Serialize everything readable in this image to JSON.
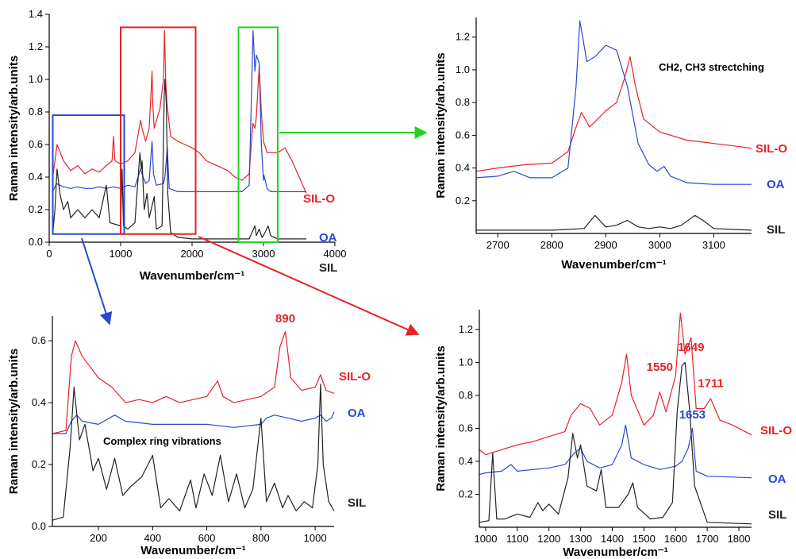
{
  "colors": {
    "SIL-O": "#e8212a",
    "OA": "#2d46d6",
    "SIL": "#222222",
    "axis": "#000000"
  },
  "chart_data": [
    {
      "id": "overview",
      "type": "line",
      "xlabel": "Wavenumber/cm⁻¹",
      "ylabel": "Raman intensity/arb.units",
      "xlim": [
        0,
        4000
      ],
      "ylim": [
        0,
        1.4
      ],
      "xticks": [
        "0",
        "1000",
        "2000",
        "3000",
        "4000"
      ],
      "yticks": [
        "0.0",
        "0.2",
        "0.4",
        "0.6",
        "0.8",
        "1.0",
        "1.2",
        "1.4"
      ],
      "series": [
        {
          "name": "SIL-O",
          "x": [
            50,
            110,
            200,
            300,
            400,
            500,
            600,
            700,
            800,
            880,
            900,
            920,
            1000,
            1100,
            1200,
            1280,
            1300,
            1350,
            1400,
            1440,
            1450,
            1470,
            1550,
            1600,
            1615,
            1630,
            1649,
            1700,
            1800,
            1900,
            2000,
            2100,
            2200,
            2300,
            2400,
            2500,
            2600,
            2700,
            2800,
            2850,
            2880,
            2900,
            2940,
            2970,
            3000,
            3050,
            3100,
            3200,
            3300,
            3400,
            3500,
            3600
          ],
          "y": [
            0.4,
            0.6,
            0.5,
            0.44,
            0.47,
            0.42,
            0.45,
            0.43,
            0.47,
            0.5,
            0.65,
            0.5,
            0.48,
            0.5,
            0.55,
            0.75,
            0.7,
            0.62,
            0.7,
            1.05,
            0.85,
            0.7,
            0.82,
            1.0,
            1.3,
            1.0,
            0.85,
            0.65,
            0.62,
            0.6,
            0.58,
            0.55,
            0.5,
            0.48,
            0.46,
            0.44,
            0.4,
            0.38,
            0.42,
            0.73,
            0.7,
            0.77,
            1.08,
            0.8,
            0.62,
            0.55,
            0.55,
            0.55,
            0.58,
            0.5,
            0.4,
            0.3
          ]
        },
        {
          "name": "OA",
          "x": [
            50,
            100,
            200,
            300,
            400,
            500,
            600,
            700,
            800,
            900,
            1000,
            1100,
            1200,
            1280,
            1300,
            1350,
            1400,
            1440,
            1460,
            1500,
            1600,
            1620,
            1653,
            1680,
            1800,
            2000,
            2200,
            2400,
            2600,
            2700,
            2800,
            2855,
            2880,
            2900,
            2940,
            2970,
            3000,
            3008,
            3050,
            3100,
            3200,
            3400,
            3600
          ],
          "y": [
            0.31,
            0.36,
            0.34,
            0.33,
            0.34,
            0.33,
            0.33,
            0.34,
            0.33,
            0.34,
            0.33,
            0.35,
            0.34,
            0.45,
            0.42,
            0.36,
            0.38,
            0.62,
            0.42,
            0.35,
            0.36,
            0.4,
            0.58,
            0.33,
            0.31,
            0.31,
            0.31,
            0.31,
            0.31,
            0.31,
            0.35,
            1.3,
            1.05,
            1.15,
            1.1,
            0.6,
            0.38,
            0.41,
            0.33,
            0.31,
            0.31,
            0.31,
            0.31
          ]
        },
        {
          "name": "SIL",
          "x": [
            50,
            80,
            110,
            150,
            200,
            260,
            300,
            400,
            500,
            600,
            700,
            800,
            850,
            1000,
            1020,
            1040,
            1100,
            1200,
            1270,
            1290,
            1300,
            1330,
            1370,
            1400,
            1470,
            1500,
            1580,
            1610,
            1620,
            1640,
            1660,
            1700,
            1800,
            2000,
            2200,
            2500,
            2700,
            2800,
            2880,
            2900,
            2940,
            2980,
            3000,
            3065,
            3100,
            3200,
            3600
          ],
          "y": [
            0.05,
            0.2,
            0.45,
            0.3,
            0.2,
            0.25,
            0.15,
            0.2,
            0.15,
            0.2,
            0.15,
            0.35,
            0.12,
            0.1,
            0.45,
            0.1,
            0.08,
            0.12,
            0.55,
            0.45,
            0.5,
            0.2,
            0.3,
            0.15,
            0.28,
            0.08,
            0.1,
            0.9,
            1.0,
            0.85,
            0.3,
            0.06,
            0.03,
            0.02,
            0.02,
            0.02,
            0.02,
            0.02,
            0.1,
            0.04,
            0.08,
            0.03,
            0.04,
            0.1,
            0.04,
            0.02,
            0.02
          ]
        }
      ],
      "legend": [
        "SIL-O",
        "OA",
        "SIL"
      ],
      "highlight_boxes": [
        {
          "color": "blue",
          "xrange": [
            50,
            1050
          ],
          "yrange": [
            0.05,
            0.78
          ]
        },
        {
          "color": "red",
          "xrange": [
            1000,
            2050
          ],
          "yrange": [
            0.05,
            1.32
          ]
        },
        {
          "color": "green",
          "xrange": [
            2650,
            3200
          ],
          "yrange": [
            0.0,
            1.32
          ]
        }
      ]
    },
    {
      "id": "ch-stretching",
      "type": "line",
      "title": "CH2, CH3 strectching",
      "xlabel": "Wavenumber/cm⁻¹",
      "ylabel": "Raman intensity/arb.units",
      "xlim": [
        2660,
        3170
      ],
      "ylim": [
        0.0,
        1.32
      ],
      "xticks": [
        "2700",
        "2800",
        "2900",
        "3000",
        "3100"
      ],
      "yticks": [
        "0.2",
        "0.4",
        "0.6",
        "0.8",
        "1.0",
        "1.2"
      ],
      "series": [
        {
          "name": "SIL-O",
          "x": [
            2660,
            2700,
            2750,
            2800,
            2830,
            2845,
            2855,
            2870,
            2900,
            2920,
            2935,
            2945,
            2955,
            2970,
            3000,
            3050,
            3100,
            3150,
            3170
          ],
          "y": [
            0.38,
            0.4,
            0.42,
            0.43,
            0.5,
            0.65,
            0.74,
            0.65,
            0.75,
            0.8,
            0.95,
            1.08,
            0.9,
            0.7,
            0.62,
            0.57,
            0.55,
            0.53,
            0.52
          ]
        },
        {
          "name": "OA",
          "x": [
            2660,
            2700,
            2730,
            2760,
            2800,
            2830,
            2845,
            2852,
            2865,
            2880,
            2900,
            2920,
            2940,
            2960,
            2980,
            2995,
            3008,
            3020,
            3050,
            3100,
            3170
          ],
          "y": [
            0.34,
            0.35,
            0.38,
            0.34,
            0.34,
            0.4,
            0.9,
            1.3,
            1.05,
            1.08,
            1.15,
            1.12,
            0.9,
            0.55,
            0.42,
            0.38,
            0.41,
            0.35,
            0.31,
            0.3,
            0.3
          ]
        },
        {
          "name": "SIL",
          "x": [
            2660,
            2800,
            2860,
            2880,
            2900,
            2920,
            2940,
            2960,
            2980,
            3000,
            3020,
            3040,
            3065,
            3080,
            3100,
            3170
          ],
          "y": [
            0.02,
            0.02,
            0.03,
            0.11,
            0.04,
            0.05,
            0.08,
            0.04,
            0.03,
            0.04,
            0.03,
            0.05,
            0.11,
            0.08,
            0.03,
            0.02
          ]
        }
      ],
      "legend": [
        "SIL-O",
        "OA",
        "SIL"
      ]
    },
    {
      "id": "ring-vibrations",
      "type": "line",
      "title": "Complex  ring vibrations",
      "xlabel": "Wavenumber/cm⁻¹",
      "ylabel": "Raman intensity/arb.units",
      "xlim": [
        30,
        1070
      ],
      "ylim": [
        0.0,
        0.68
      ],
      "xticks": [
        "200",
        "400",
        "600",
        "800",
        "1000"
      ],
      "yticks": [
        "0.0",
        "0.2",
        "0.4",
        "0.6"
      ],
      "series": [
        {
          "name": "SIL-O",
          "x": [
            30,
            80,
            100,
            115,
            140,
            200,
            250,
            300,
            350,
            400,
            450,
            500,
            550,
            600,
            640,
            660,
            700,
            750,
            800,
            850,
            870,
            890,
            910,
            950,
            1000,
            1020,
            1040,
            1070
          ],
          "y": [
            0.3,
            0.31,
            0.55,
            0.6,
            0.55,
            0.48,
            0.45,
            0.4,
            0.41,
            0.4,
            0.42,
            0.4,
            0.41,
            0.42,
            0.47,
            0.42,
            0.4,
            0.41,
            0.42,
            0.45,
            0.58,
            0.63,
            0.48,
            0.44,
            0.45,
            0.49,
            0.44,
            0.43
          ]
        },
        {
          "name": "OA",
          "x": [
            30,
            80,
            100,
            120,
            140,
            200,
            260,
            300,
            400,
            500,
            600,
            700,
            800,
            820,
            850,
            900,
            950,
            1000,
            1020,
            1040,
            1060,
            1070
          ],
          "y": [
            0.3,
            0.3,
            0.34,
            0.36,
            0.34,
            0.33,
            0.36,
            0.34,
            0.33,
            0.33,
            0.33,
            0.32,
            0.33,
            0.35,
            0.36,
            0.35,
            0.34,
            0.35,
            0.36,
            0.34,
            0.35,
            0.37
          ]
        },
        {
          "name": "SIL",
          "x": [
            30,
            70,
            95,
            110,
            130,
            150,
            180,
            200,
            230,
            260,
            290,
            320,
            360,
            400,
            430,
            460,
            500,
            540,
            560,
            590,
            620,
            650,
            680,
            710,
            740,
            770,
            800,
            820,
            850,
            880,
            900,
            930,
            960,
            990,
            1010,
            1020,
            1030,
            1050,
            1070
          ],
          "y": [
            0.02,
            0.03,
            0.25,
            0.45,
            0.28,
            0.33,
            0.18,
            0.22,
            0.12,
            0.22,
            0.1,
            0.13,
            0.16,
            0.23,
            0.06,
            0.09,
            0.05,
            0.15,
            0.06,
            0.17,
            0.1,
            0.23,
            0.08,
            0.17,
            0.06,
            0.12,
            0.35,
            0.08,
            0.14,
            0.06,
            0.1,
            0.05,
            0.08,
            0.06,
            0.2,
            0.46,
            0.2,
            0.08,
            0.05
          ]
        }
      ],
      "annotations": [
        {
          "text": "890",
          "x": 890,
          "y": 0.66,
          "color": "#e8212a"
        }
      ],
      "legend": [
        "SIL-O",
        "OA",
        "SIL"
      ]
    },
    {
      "id": "fingerprint",
      "type": "line",
      "xlabel": "Wavenumber/cm⁻¹",
      "ylabel": "Raman intensity/arb.units",
      "xlim": [
        980,
        1840
      ],
      "ylim": [
        0.0,
        1.32
      ],
      "xticks": [
        "1000",
        "1100",
        "1200",
        "1300",
        "1400",
        "1500",
        "1600",
        "1700",
        "1800"
      ],
      "yticks": [
        "0.2",
        "0.4",
        "0.6",
        "0.8",
        "1.0",
        "1.2"
      ],
      "series": [
        {
          "name": "SIL-O",
          "x": [
            980,
            1000,
            1050,
            1100,
            1150,
            1200,
            1250,
            1270,
            1300,
            1330,
            1360,
            1400,
            1430,
            1445,
            1460,
            1500,
            1530,
            1550,
            1570,
            1600,
            1615,
            1630,
            1649,
            1665,
            1690,
            1711,
            1740,
            1780,
            1840
          ],
          "y": [
            0.47,
            0.44,
            0.47,
            0.5,
            0.52,
            0.55,
            0.58,
            0.68,
            0.75,
            0.72,
            0.62,
            0.68,
            0.88,
            1.05,
            0.8,
            0.62,
            0.68,
            0.82,
            0.7,
            0.92,
            1.3,
            1.05,
            1.15,
            0.72,
            0.72,
            0.78,
            0.65,
            0.62,
            0.56
          ]
        },
        {
          "name": "OA",
          "x": [
            980,
            1000,
            1050,
            1080,
            1100,
            1150,
            1200,
            1250,
            1280,
            1300,
            1320,
            1360,
            1400,
            1430,
            1442,
            1460,
            1500,
            1550,
            1600,
            1620,
            1640,
            1653,
            1665,
            1700,
            1840
          ],
          "y": [
            0.32,
            0.33,
            0.34,
            0.38,
            0.34,
            0.35,
            0.36,
            0.38,
            0.45,
            0.48,
            0.4,
            0.36,
            0.38,
            0.5,
            0.62,
            0.42,
            0.38,
            0.35,
            0.37,
            0.4,
            0.48,
            0.6,
            0.34,
            0.31,
            0.3
          ]
        },
        {
          "name": "SIL",
          "x": [
            980,
            1010,
            1022,
            1035,
            1060,
            1100,
            1140,
            1165,
            1180,
            1200,
            1230,
            1260,
            1275,
            1290,
            1300,
            1320,
            1350,
            1365,
            1380,
            1420,
            1450,
            1465,
            1480,
            1520,
            1560,
            1590,
            1605,
            1620,
            1630,
            1645,
            1660,
            1700,
            1840
          ],
          "y": [
            0.03,
            0.04,
            0.45,
            0.05,
            0.05,
            0.08,
            0.06,
            0.15,
            0.1,
            0.14,
            0.08,
            0.3,
            0.57,
            0.42,
            0.5,
            0.25,
            0.22,
            0.35,
            0.12,
            0.12,
            0.2,
            0.27,
            0.12,
            0.05,
            0.06,
            0.15,
            0.7,
            0.98,
            1.0,
            0.7,
            0.25,
            0.03,
            0.02
          ]
        }
      ],
      "annotations": [
        {
          "text": "1550",
          "x": 1550,
          "y": 0.95,
          "color": "#e8212a"
        },
        {
          "text": "1649",
          "x": 1649,
          "y": 1.07,
          "color": "#e8212a"
        },
        {
          "text": "1711",
          "x": 1711,
          "y": 0.85,
          "color": "#e8212a"
        },
        {
          "text": "1653",
          "x": 1653,
          "y": 0.66,
          "color": "#2d46d6"
        }
      ],
      "legend": [
        "SIL-O",
        "OA",
        "SIL"
      ]
    }
  ]
}
